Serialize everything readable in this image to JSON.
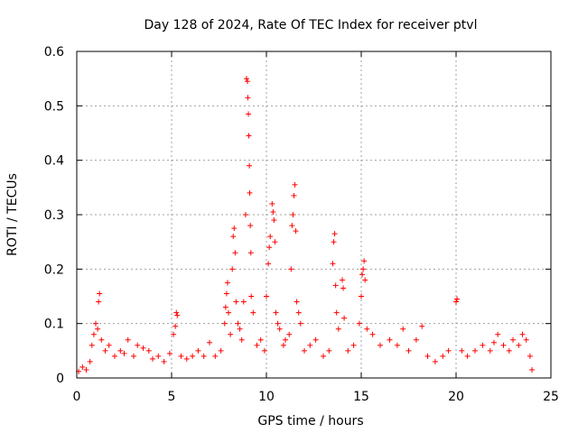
{
  "chart_data": {
    "type": "scatter",
    "title": "Day 128 of 2024, Rate Of TEC Index for receiver ptvl",
    "xlabel": "GPS time / hours",
    "ylabel": "ROTI / TECUs",
    "xlim": [
      0,
      25
    ],
    "ylim": [
      0,
      0.6
    ],
    "xticks": [
      0,
      5,
      10,
      15,
      20,
      25
    ],
    "xtick_labels": [
      "0",
      "5",
      "10",
      "15",
      "20",
      "25"
    ],
    "yticks": [
      0,
      0.1,
      0.2,
      0.3,
      0.4,
      0.5,
      0.6
    ],
    "ytick_labels": [
      "0",
      "0.1",
      "0.2",
      "0.3",
      "0.4",
      "0.5",
      "0.6"
    ],
    "grid": true,
    "marker": "+",
    "color": "#ff0000",
    "series": [
      {
        "name": "ROTI",
        "points": [
          [
            0.1,
            0.012
          ],
          [
            0.3,
            0.02
          ],
          [
            0.5,
            0.015
          ],
          [
            0.7,
            0.03
          ],
          [
            0.8,
            0.06
          ],
          [
            0.9,
            0.08
          ],
          [
            1.0,
            0.1
          ],
          [
            1.1,
            0.09
          ],
          [
            1.15,
            0.14
          ],
          [
            1.2,
            0.155
          ],
          [
            1.3,
            0.07
          ],
          [
            1.5,
            0.05
          ],
          [
            1.7,
            0.06
          ],
          [
            2.0,
            0.04
          ],
          [
            2.3,
            0.05
          ],
          [
            2.5,
            0.045
          ],
          [
            2.7,
            0.07
          ],
          [
            3.0,
            0.04
          ],
          [
            3.2,
            0.06
          ],
          [
            3.5,
            0.055
          ],
          [
            3.8,
            0.05
          ],
          [
            4.0,
            0.035
          ],
          [
            4.3,
            0.04
          ],
          [
            4.6,
            0.03
          ],
          [
            4.9,
            0.045
          ],
          [
            5.1,
            0.08
          ],
          [
            5.2,
            0.095
          ],
          [
            5.25,
            0.12
          ],
          [
            5.3,
            0.115
          ],
          [
            5.5,
            0.04
          ],
          [
            5.8,
            0.035
          ],
          [
            6.1,
            0.04
          ],
          [
            6.4,
            0.05
          ],
          [
            6.7,
            0.04
          ],
          [
            7.0,
            0.065
          ],
          [
            7.3,
            0.04
          ],
          [
            7.6,
            0.05
          ],
          [
            7.8,
            0.1
          ],
          [
            7.85,
            0.13
          ],
          [
            7.9,
            0.155
          ],
          [
            7.95,
            0.175
          ],
          [
            8.0,
            0.12
          ],
          [
            8.1,
            0.08
          ],
          [
            8.2,
            0.2
          ],
          [
            8.25,
            0.26
          ],
          [
            8.3,
            0.275
          ],
          [
            8.35,
            0.23
          ],
          [
            8.4,
            0.14
          ],
          [
            8.5,
            0.1
          ],
          [
            8.6,
            0.09
          ],
          [
            8.7,
            0.07
          ],
          [
            8.8,
            0.14
          ],
          [
            8.9,
            0.3
          ],
          [
            8.95,
            0.55
          ],
          [
            9.0,
            0.545
          ],
          [
            9.02,
            0.515
          ],
          [
            9.05,
            0.485
          ],
          [
            9.07,
            0.445
          ],
          [
            9.1,
            0.39
          ],
          [
            9.12,
            0.34
          ],
          [
            9.15,
            0.28
          ],
          [
            9.18,
            0.23
          ],
          [
            9.2,
            0.15
          ],
          [
            9.3,
            0.12
          ],
          [
            9.5,
            0.06
          ],
          [
            9.7,
            0.07
          ],
          [
            9.9,
            0.05
          ],
          [
            10.0,
            0.15
          ],
          [
            10.1,
            0.21
          ],
          [
            10.15,
            0.24
          ],
          [
            10.2,
            0.26
          ],
          [
            10.3,
            0.32
          ],
          [
            10.35,
            0.305
          ],
          [
            10.4,
            0.29
          ],
          [
            10.45,
            0.25
          ],
          [
            10.5,
            0.12
          ],
          [
            10.6,
            0.1
          ],
          [
            10.7,
            0.09
          ],
          [
            10.9,
            0.06
          ],
          [
            11.0,
            0.07
          ],
          [
            11.2,
            0.08
          ],
          [
            11.3,
            0.2
          ],
          [
            11.35,
            0.28
          ],
          [
            11.4,
            0.3
          ],
          [
            11.45,
            0.335
          ],
          [
            11.5,
            0.355
          ],
          [
            11.55,
            0.27
          ],
          [
            11.6,
            0.14
          ],
          [
            11.7,
            0.12
          ],
          [
            11.8,
            0.1
          ],
          [
            12.0,
            0.05
          ],
          [
            12.3,
            0.06
          ],
          [
            12.6,
            0.07
          ],
          [
            13.0,
            0.04
          ],
          [
            13.3,
            0.05
          ],
          [
            13.5,
            0.21
          ],
          [
            13.55,
            0.25
          ],
          [
            13.6,
            0.265
          ],
          [
            13.65,
            0.17
          ],
          [
            13.7,
            0.12
          ],
          [
            13.8,
            0.09
          ],
          [
            14.0,
            0.18
          ],
          [
            14.05,
            0.165
          ],
          [
            14.1,
            0.11
          ],
          [
            14.3,
            0.05
          ],
          [
            14.6,
            0.06
          ],
          [
            14.9,
            0.1
          ],
          [
            15.0,
            0.15
          ],
          [
            15.05,
            0.19
          ],
          [
            15.1,
            0.2
          ],
          [
            15.15,
            0.215
          ],
          [
            15.2,
            0.18
          ],
          [
            15.3,
            0.09
          ],
          [
            15.6,
            0.08
          ],
          [
            16.0,
            0.06
          ],
          [
            16.5,
            0.07
          ],
          [
            16.9,
            0.06
          ],
          [
            17.2,
            0.09
          ],
          [
            17.5,
            0.05
          ],
          [
            17.9,
            0.07
          ],
          [
            18.2,
            0.095
          ],
          [
            18.5,
            0.04
          ],
          [
            18.9,
            0.03
          ],
          [
            19.3,
            0.04
          ],
          [
            19.6,
            0.05
          ],
          [
            20.0,
            0.14
          ],
          [
            20.05,
            0.145
          ],
          [
            20.3,
            0.05
          ],
          [
            20.6,
            0.04
          ],
          [
            21.0,
            0.05
          ],
          [
            21.4,
            0.06
          ],
          [
            21.8,
            0.05
          ],
          [
            22.0,
            0.065
          ],
          [
            22.2,
            0.08
          ],
          [
            22.5,
            0.06
          ],
          [
            22.8,
            0.05
          ],
          [
            23.0,
            0.07
          ],
          [
            23.3,
            0.06
          ],
          [
            23.5,
            0.08
          ],
          [
            23.7,
            0.07
          ],
          [
            23.9,
            0.04
          ],
          [
            24.0,
            0.015
          ]
        ]
      }
    ]
  }
}
